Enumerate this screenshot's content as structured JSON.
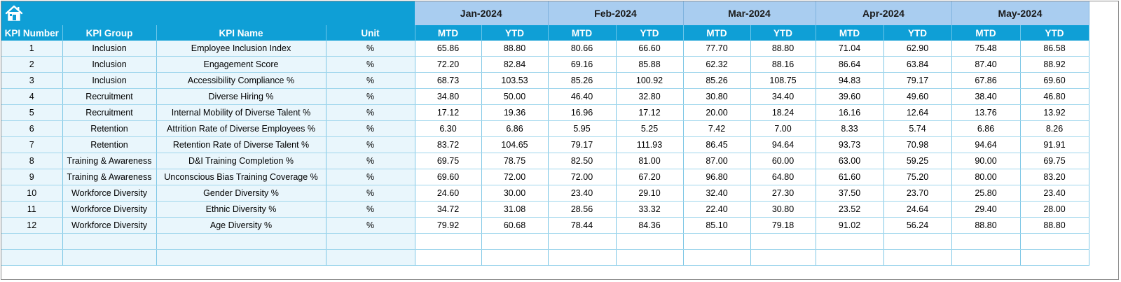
{
  "header": {
    "months": [
      "Jan-2024",
      "Feb-2024",
      "Mar-2024",
      "Apr-2024",
      "May-2024"
    ],
    "columns": {
      "kpi_number": "KPI Number",
      "kpi_group": "KPI Group",
      "kpi_name": "KPI Name",
      "unit": "Unit",
      "mtd": "MTD",
      "ytd": "YTD"
    },
    "home_icon": "home-icon"
  },
  "rows": [
    {
      "num": "1",
      "group": "Inclusion",
      "name": "Employee Inclusion Index",
      "unit": "%",
      "vals": [
        "65.86",
        "88.80",
        "80.66",
        "66.60",
        "77.70",
        "88.80",
        "71.04",
        "62.90",
        "75.48",
        "86.58"
      ]
    },
    {
      "num": "2",
      "group": "Inclusion",
      "name": "Engagement Score",
      "unit": "%",
      "vals": [
        "72.20",
        "82.84",
        "69.16",
        "85.88",
        "62.32",
        "88.16",
        "86.64",
        "63.84",
        "87.40",
        "88.92"
      ]
    },
    {
      "num": "3",
      "group": "Inclusion",
      "name": "Accessibility Compliance %",
      "unit": "%",
      "vals": [
        "68.73",
        "103.53",
        "85.26",
        "100.92",
        "85.26",
        "108.75",
        "94.83",
        "79.17",
        "67.86",
        "69.60"
      ]
    },
    {
      "num": "4",
      "group": "Recruitment",
      "name": "Diverse Hiring %",
      "unit": "%",
      "vals": [
        "34.80",
        "50.00",
        "46.40",
        "32.80",
        "30.80",
        "34.40",
        "39.60",
        "49.60",
        "38.40",
        "46.80"
      ]
    },
    {
      "num": "5",
      "group": "Recruitment",
      "name": "Internal Mobility of Diverse Talent %",
      "unit": "%",
      "vals": [
        "17.12",
        "19.36",
        "16.96",
        "17.12",
        "20.00",
        "18.24",
        "16.16",
        "12.64",
        "13.76",
        "13.92"
      ]
    },
    {
      "num": "6",
      "group": "Retention",
      "name": "Attrition Rate of Diverse Employees %",
      "unit": "%",
      "vals": [
        "6.30",
        "6.86",
        "5.95",
        "5.25",
        "7.42",
        "7.00",
        "8.33",
        "5.74",
        "6.86",
        "8.26"
      ]
    },
    {
      "num": "7",
      "group": "Retention",
      "name": "Retention Rate of Diverse Talent %",
      "unit": "%",
      "vals": [
        "83.72",
        "104.65",
        "79.17",
        "111.93",
        "86.45",
        "94.64",
        "93.73",
        "70.98",
        "94.64",
        "91.91"
      ]
    },
    {
      "num": "8",
      "group": "Training & Awareness",
      "name": "D&I Training Completion %",
      "unit": "%",
      "vals": [
        "69.75",
        "78.75",
        "82.50",
        "81.00",
        "87.00",
        "60.00",
        "63.00",
        "59.25",
        "90.00",
        "69.75"
      ]
    },
    {
      "num": "9",
      "group": "Training & Awareness",
      "name": "Unconscious Bias Training Coverage %",
      "unit": "%",
      "vals": [
        "69.60",
        "72.00",
        "72.00",
        "67.20",
        "96.80",
        "64.80",
        "61.60",
        "75.20",
        "80.00",
        "83.20"
      ]
    },
    {
      "num": "10",
      "group": "Workforce Diversity",
      "name": "Gender Diversity %",
      "unit": "%",
      "vals": [
        "24.60",
        "30.00",
        "23.40",
        "29.10",
        "32.40",
        "27.30",
        "37.50",
        "23.70",
        "25.80",
        "23.40"
      ]
    },
    {
      "num": "11",
      "group": "Workforce Diversity",
      "name": "Ethnic Diversity %",
      "unit": "%",
      "vals": [
        "34.72",
        "31.08",
        "28.56",
        "33.32",
        "22.40",
        "30.80",
        "23.52",
        "24.64",
        "29.40",
        "28.00"
      ]
    },
    {
      "num": "12",
      "group": "Workforce Diversity",
      "name": "Age Diversity %",
      "unit": "%",
      "vals": [
        "79.92",
        "60.68",
        "78.44",
        "84.36",
        "85.10",
        "79.18",
        "91.02",
        "56.24",
        "88.80",
        "88.80"
      ]
    }
  ],
  "colors": {
    "header_blue": "#0f9fd6",
    "month_band": "#a9cdf0",
    "left_fill": "#e9f6fc"
  }
}
